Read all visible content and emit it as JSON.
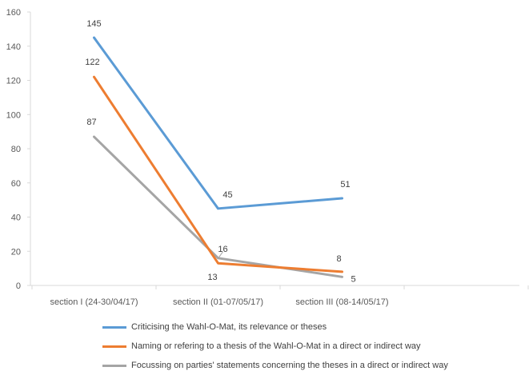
{
  "chart_data": {
    "type": "line",
    "categories": [
      "section I (24-30/04/17)",
      "section II (01-07/05/17)",
      "section III (08-14/05/17)"
    ],
    "series": [
      {
        "name": "Criticising the Wahl-O-Mat, its relevance or theses",
        "values": [
          145,
          45,
          51
        ],
        "color": "#5B9BD5"
      },
      {
        "name": "Naming or refering to a thesis of the Wahl-O-Mat in a direct or indirect way",
        "values": [
          122,
          13,
          8
        ],
        "color": "#ED7D31"
      },
      {
        "name": "Focussing on parties' statements concerning the theses in a direct or indirect way",
        "values": [
          87,
          16,
          5
        ],
        "color": "#A5A5A5"
      }
    ],
    "ylim": [
      0,
      160
    ],
    "yticks": [
      0,
      20,
      40,
      60,
      80,
      100,
      120,
      140,
      160
    ],
    "grid": false,
    "legend_position": "bottom"
  }
}
